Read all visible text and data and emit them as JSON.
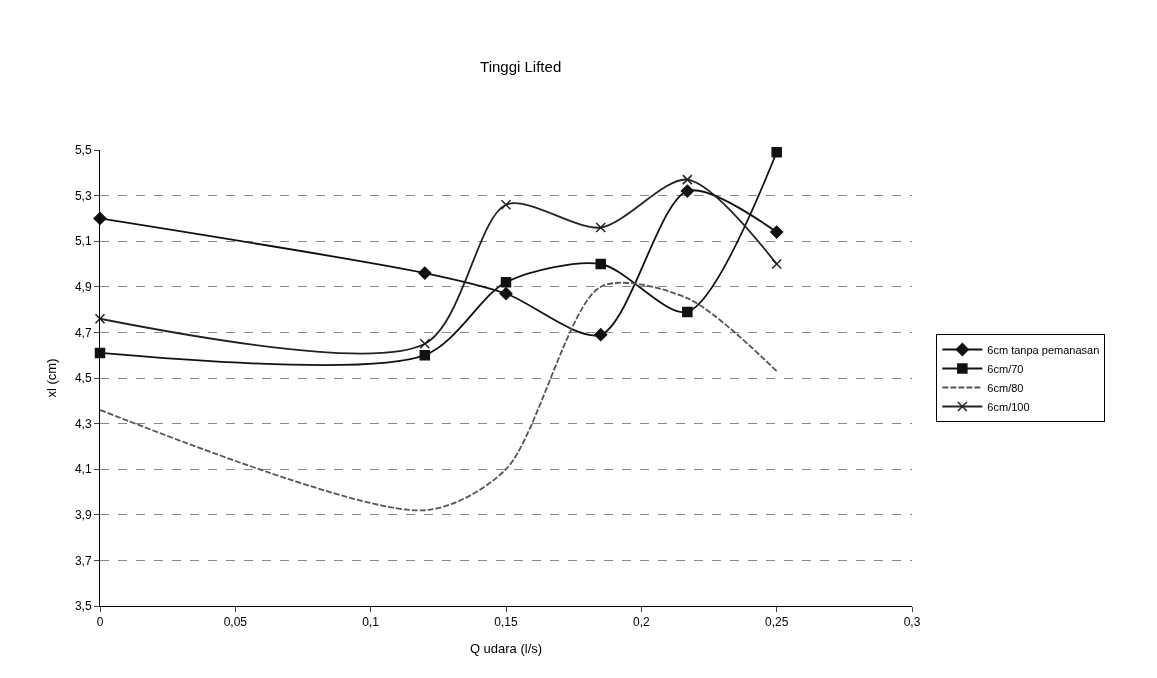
{
  "chart_data": {
    "type": "line",
    "title": "Tinggi Lifted",
    "xlabel": "Q udara (l/s)",
    "ylabel": "xl (cm)",
    "x": [
      0,
      0.12,
      0.15,
      0.185,
      0.217,
      0.25
    ],
    "series": [
      {
        "name": "6cm tanpa pemanasan",
        "color": "#111111",
        "marker": "diamond",
        "line_style": "solid",
        "values": [
          5.2,
          4.96,
          4.87,
          4.69,
          5.32,
          5.14
        ]
      },
      {
        "name": "6cm/70",
        "color": "#111111",
        "marker": "square",
        "line_style": "solid",
        "values": [
          4.61,
          4.6,
          4.92,
          5.0,
          4.79,
          5.49
        ]
      },
      {
        "name": "6cm/80",
        "color": "#555555",
        "marker": "none",
        "line_style": "dashed",
        "values": [
          4.36,
          3.92,
          4.1,
          4.9,
          4.85,
          4.53
        ]
      },
      {
        "name": "6cm/100",
        "color": "#222222",
        "marker": "cross",
        "line_style": "solid",
        "values": [
          4.76,
          4.65,
          5.26,
          5.16,
          5.37,
          5.0
        ]
      }
    ],
    "xlim": [
      0,
      0.3
    ],
    "xticks": [
      0,
      {
        "value": 0.05,
        "label": "0,05"
      },
      {
        "value": 0.1,
        "label": "0,1"
      },
      {
        "value": 0.15,
        "label": "0,15"
      },
      {
        "value": 0.2,
        "label": "0,2"
      },
      {
        "value": 0.25,
        "label": "0,25"
      },
      {
        "value": 0.3,
        "label": "0,3"
      }
    ],
    "ylim": [
      3.5,
      5.5
    ],
    "yticks": [
      {
        "value": 3.5,
        "label": "3,5"
      },
      {
        "value": 3.7,
        "label": "3,7"
      },
      {
        "value": 3.9,
        "label": "3,9"
      },
      {
        "value": 4.1,
        "label": "4,1"
      },
      {
        "value": 4.3,
        "label": "4,3"
      },
      {
        "value": 4.5,
        "label": "4,5"
      },
      {
        "value": 4.7,
        "label": "4,7"
      },
      {
        "value": 4.9,
        "label": "4,9"
      },
      {
        "value": 5.1,
        "label": "5,1"
      },
      {
        "value": 5.3,
        "label": "5,3"
      },
      {
        "value": 5.5,
        "label": "5,5"
      }
    ],
    "grid": "y",
    "legend": "right"
  }
}
